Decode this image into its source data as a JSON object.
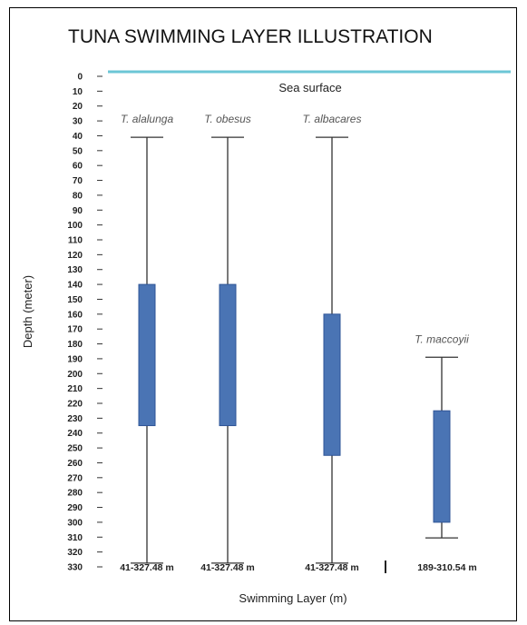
{
  "chart_data": {
    "type": "box",
    "title": "TUNA SWIMMING LAYER ILLUSTRATION",
    "ylabel": "Depth (meter)",
    "xlabel": "Swimming Layer (m)",
    "surface_label": "Sea surface",
    "y_ticks": [
      0,
      10,
      20,
      30,
      40,
      50,
      60,
      70,
      80,
      90,
      100,
      110,
      120,
      130,
      140,
      150,
      160,
      170,
      180,
      190,
      200,
      210,
      220,
      230,
      240,
      250,
      260,
      270,
      280,
      290,
      300,
      310,
      320,
      330
    ],
    "ylim": [
      0,
      330
    ],
    "y_inverted": true,
    "colors": {
      "box": "#4a74b4",
      "box_edge": "#2f5597",
      "surface": "#6cc6d6",
      "whisker": "#333333"
    },
    "series": [
      {
        "name": "T. alalunga",
        "whisker_top": 41,
        "box_top": 140,
        "box_bottom": 235,
        "whisker_bottom": 327.48,
        "range_label": "41-327.48 m"
      },
      {
        "name": "T. obesus",
        "whisker_top": 41,
        "box_top": 140,
        "box_bottom": 235,
        "whisker_bottom": 327.48,
        "range_label": "41-327.48 m"
      },
      {
        "name": "T. albacares",
        "whisker_top": 41,
        "box_top": 160,
        "box_bottom": 255,
        "whisker_bottom": 327.48,
        "range_label": "41-327.48 m"
      },
      {
        "name": "T. maccoyii",
        "whisker_top": 189,
        "box_top": 225,
        "box_bottom": 300,
        "whisker_bottom": 310.54,
        "range_label": "189-310.54 m"
      }
    ]
  }
}
